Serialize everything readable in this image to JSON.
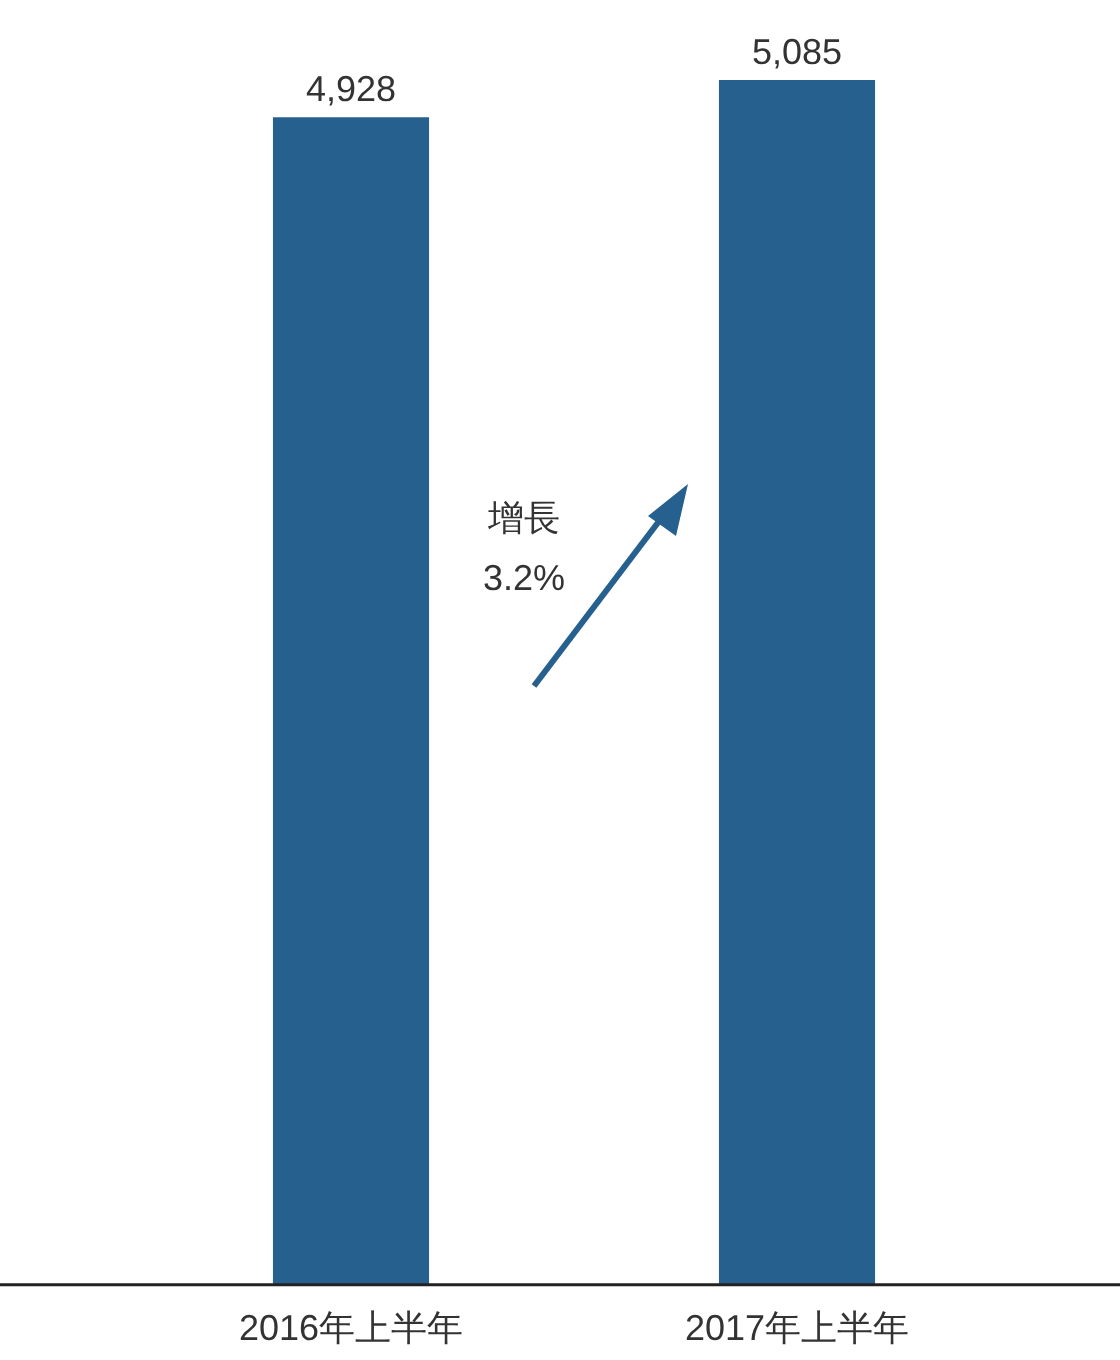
{
  "chart_data": {
    "type": "bar",
    "categories": [
      "2016年上半年",
      "2017年上半年"
    ],
    "values": [
      4928,
      5085
    ],
    "color": "#26608f",
    "value_labels": [
      "4,928",
      "5,085"
    ],
    "tick_labels": "x",
    "grid": false,
    "legend": false,
    "annotations": [
      "增長\n3.2%"
    ]
  }
}
